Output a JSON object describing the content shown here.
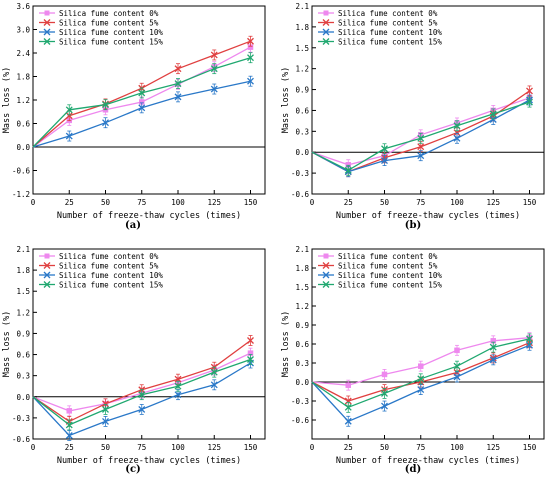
{
  "chart_data": [
    {
      "type": "line",
      "panel_label": "(a)",
      "xlabel": "Number of freeze-thaw cycles (times)",
      "ylabel": "Mass loss (%)",
      "x": [
        0,
        25,
        50,
        75,
        100,
        125,
        150
      ],
      "x_ticks": [
        0,
        25,
        50,
        75,
        100,
        125,
        150
      ],
      "xlim": [
        0,
        160
      ],
      "ylim": [
        -1.2,
        3.6
      ],
      "y_ticks": [
        -1.2,
        -0.6,
        0.0,
        0.6,
        1.2,
        1.8,
        2.4,
        3.0,
        3.6
      ],
      "y_tick_labels": [
        "-1.2",
        "-0.6",
        "0.0",
        "0.6",
        "1.2",
        "1.8",
        "2.4",
        "3.0",
        "3.6"
      ],
      "legend_position": "top-left",
      "series": [
        {
          "name": "Silica fume content 0%",
          "values": [
            0,
            0.68,
            0.95,
            1.15,
            1.6,
            2.05,
            2.55
          ]
        },
        {
          "name": "Silica fume content 5%",
          "values": [
            0,
            0.8,
            1.1,
            1.5,
            2.0,
            2.35,
            2.7
          ]
        },
        {
          "name": "Silica fume content 10%",
          "values": [
            0,
            0.28,
            0.62,
            1.0,
            1.28,
            1.48,
            1.68
          ]
        },
        {
          "name": "Silica fume content 15%",
          "values": [
            0,
            0.95,
            1.08,
            1.38,
            1.62,
            2.0,
            2.28
          ]
        }
      ]
    },
    {
      "type": "line",
      "panel_label": "(b)",
      "xlabel": "Number of freeze-thaw cycles (times)",
      "ylabel": "Mass loss (%)",
      "x": [
        0,
        25,
        50,
        75,
        100,
        125,
        150
      ],
      "x_ticks": [
        0,
        25,
        50,
        75,
        100,
        125,
        150
      ],
      "xlim": [
        0,
        160
      ],
      "ylim": [
        -0.6,
        2.1
      ],
      "y_ticks": [
        -0.6,
        -0.3,
        0.0,
        0.3,
        0.6,
        0.9,
        1.2,
        1.5,
        1.8,
        2.1
      ],
      "y_tick_labels": [
        "-0.6",
        "-0.3",
        "0.0",
        "0.3",
        "0.6",
        "0.9",
        "1.2",
        "1.5",
        "1.8",
        "2.1"
      ],
      "legend_position": "top-left",
      "series": [
        {
          "name": "Silica fume content 0%",
          "values": [
            0,
            -0.18,
            -0.05,
            0.25,
            0.42,
            0.6,
            0.78
          ]
        },
        {
          "name": "Silica fume content 5%",
          "values": [
            0,
            -0.28,
            -0.08,
            0.08,
            0.28,
            0.52,
            0.88
          ]
        },
        {
          "name": "Silica fume content 10%",
          "values": [
            0,
            -0.28,
            -0.12,
            -0.05,
            0.2,
            0.47,
            0.75
          ]
        },
        {
          "name": "Silica fume content 15%",
          "values": [
            0,
            -0.26,
            0.05,
            0.2,
            0.38,
            0.55,
            0.72
          ]
        }
      ]
    },
    {
      "type": "line",
      "panel_label": "(c)",
      "xlabel": "Number of freeze-thaw cycles (times)",
      "ylabel": "Mass loss (%)",
      "x": [
        0,
        25,
        50,
        75,
        100,
        125,
        150
      ],
      "x_ticks": [
        0,
        25,
        50,
        75,
        100,
        125,
        150
      ],
      "xlim": [
        0,
        160
      ],
      "ylim": [
        -0.6,
        2.1
      ],
      "y_ticks": [
        -0.6,
        -0.3,
        0.0,
        0.3,
        0.6,
        0.9,
        1.2,
        1.5,
        1.8,
        2.1
      ],
      "y_tick_labels": [
        "-0.6",
        "-0.3",
        "0.0",
        "0.3",
        "0.6",
        "0.9",
        "1.2",
        "1.5",
        "1.8",
        "2.1"
      ],
      "legend_position": "top-left",
      "series": [
        {
          "name": "Silica fume content 0%",
          "values": [
            0,
            -0.2,
            -0.1,
            0.05,
            0.2,
            0.38,
            0.62
          ]
        },
        {
          "name": "Silica fume content 5%",
          "values": [
            0,
            -0.35,
            -0.1,
            0.1,
            0.25,
            0.42,
            0.8
          ]
        },
        {
          "name": "Silica fume content 10%",
          "values": [
            0,
            -0.55,
            -0.35,
            -0.18,
            0.03,
            0.17,
            0.48
          ]
        },
        {
          "name": "Silica fume content 15%",
          "values": [
            0,
            -0.4,
            -0.18,
            0.03,
            0.15,
            0.35,
            0.53
          ]
        }
      ]
    },
    {
      "type": "line",
      "panel_label": "(d)",
      "xlabel": "Number of freeze-thaw cycles (times)",
      "ylabel": "Mass loss (%)",
      "x": [
        0,
        25,
        50,
        75,
        100,
        125,
        150
      ],
      "x_ticks": [
        0,
        25,
        50,
        75,
        100,
        125,
        150
      ],
      "xlim": [
        0,
        160
      ],
      "ylim": [
        -0.9,
        2.1
      ],
      "y_ticks": [
        -0.9,
        -0.6,
        -0.3,
        0.0,
        0.3,
        0.6,
        0.9,
        1.2,
        1.5,
        1.8,
        2.1
      ],
      "y_tick_labels": [
        "",
        "-0.6",
        "-0.3",
        "0.0",
        "0.3",
        "0.6",
        "0.9",
        "1.2",
        "1.5",
        "1.8",
        "2.1"
      ],
      "legend_position": "top-left",
      "series": [
        {
          "name": "Silica fume content 0%",
          "values": [
            0,
            -0.05,
            0.12,
            0.25,
            0.5,
            0.65,
            0.7
          ]
        },
        {
          "name": "Silica fume content 5%",
          "values": [
            0,
            -0.3,
            -0.12,
            0.0,
            0.15,
            0.38,
            0.62
          ]
        },
        {
          "name": "Silica fume content 10%",
          "values": [
            0,
            -0.62,
            -0.38,
            -0.12,
            0.08,
            0.35,
            0.58
          ]
        },
        {
          "name": "Silica fume content 15%",
          "values": [
            0,
            -0.4,
            -0.18,
            0.05,
            0.25,
            0.55,
            0.68
          ]
        }
      ]
    }
  ],
  "colors": {
    "Silica fume content 0%": "#ee88ee",
    "Silica fume content 5%": "#e04040",
    "Silica fume content 10%": "#2a78c8",
    "Silica fume content 15%": "#20a870"
  },
  "markers": {
    "Silica fume content 0%": "star",
    "Silica fume content 5%": "x",
    "Silica fume content 10%": "x",
    "Silica fume content 15%": "x"
  }
}
